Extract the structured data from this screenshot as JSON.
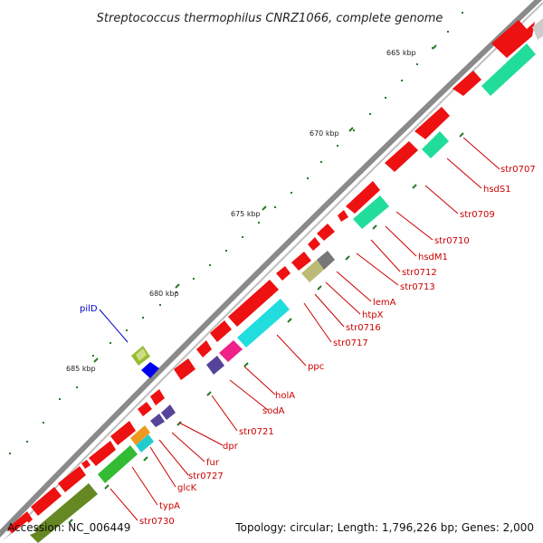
{
  "title": "Streptococcus thermophilus CNRZ1066, complete genome",
  "footer": {
    "accession": "Accession: NC_006449",
    "summary": "Topology: circular; Length: 1,796,226 bp; Genes: 2,000"
  },
  "ruler_labels": [
    {
      "text": "665 kbp"
    },
    {
      "text": "670 kbp"
    },
    {
      "text": "675 kbp"
    },
    {
      "text": "680 kbp"
    },
    {
      "text": "685 kbp"
    }
  ],
  "genes_forward_labels": [
    {
      "text": "str0707"
    },
    {
      "text": "hsdS1"
    },
    {
      "text": "str0709"
    },
    {
      "text": "str0710"
    },
    {
      "text": "hsdM1"
    },
    {
      "text": "str0712"
    },
    {
      "text": "str0713"
    },
    {
      "text": "lemA"
    },
    {
      "text": "htpX"
    },
    {
      "text": "str0716"
    },
    {
      "text": "str0717"
    },
    {
      "text": "ppc"
    },
    {
      "text": "holA"
    },
    {
      "text": "sodA"
    },
    {
      "text": "str0721"
    },
    {
      "text": "dpr"
    },
    {
      "text": "fur"
    },
    {
      "text": "str0727"
    },
    {
      "text": "glcK"
    },
    {
      "text": "typA"
    },
    {
      "text": "str0730"
    }
  ],
  "gene_reverse_label": {
    "text": "pilD"
  },
  "colors": {
    "gene_red": "#ee1111",
    "backbone": "#8a8a8a",
    "label_red": "#cc0000",
    "label_blue": "#0000cc",
    "tick_green": "#2a7a2a"
  }
}
